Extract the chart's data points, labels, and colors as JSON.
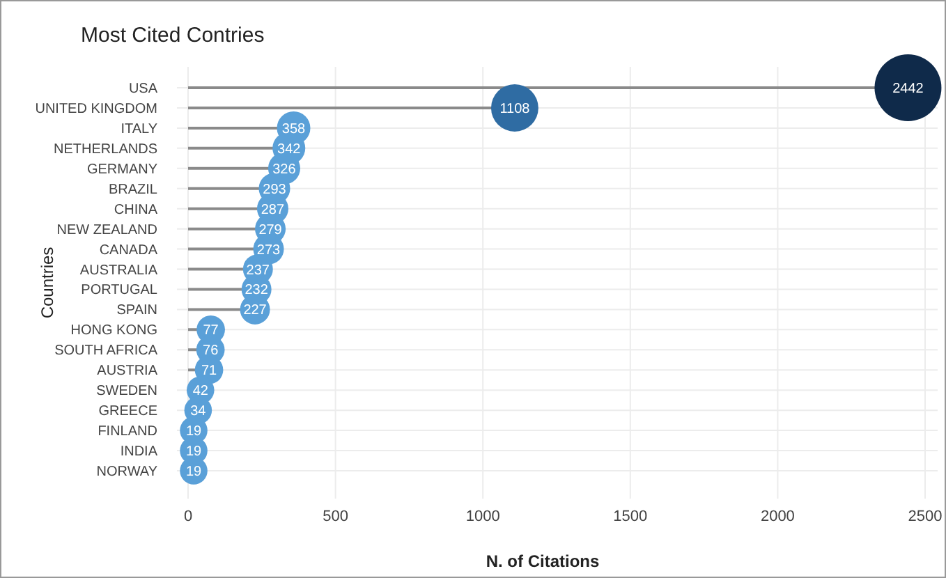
{
  "chart_data": {
    "type": "lollipop",
    "orientation": "horizontal",
    "title": "Most Cited Contries",
    "xlabel": "N. of Citations",
    "ylabel": "Countries",
    "categories": [
      "USA",
      "UNITED KINGDOM",
      "ITALY",
      "NETHERLANDS",
      "GERMANY",
      "BRAZIL",
      "CHINA",
      "NEW ZEALAND",
      "CANADA",
      "AUSTRALIA",
      "PORTUGAL",
      "SPAIN",
      "HONG KONG",
      "SOUTH AFRICA",
      "AUSTRIA",
      "SWEDEN",
      "GREECE",
      "FINLAND",
      "INDIA",
      "NORWAY"
    ],
    "values": [
      2442,
      1108,
      358,
      342,
      326,
      293,
      287,
      279,
      273,
      237,
      232,
      227,
      77,
      76,
      71,
      42,
      34,
      19,
      19,
      19
    ],
    "colors": [
      "#0f2a4a",
      "#2f6ca3",
      "#5aa0d8",
      "#5aa0d8",
      "#5aa0d8",
      "#5aa0d8",
      "#5aa0d8",
      "#5aa0d8",
      "#5aa0d8",
      "#5aa0d8",
      "#5aa0d8",
      "#5aa0d8",
      "#5aa0d8",
      "#5aa0d8",
      "#5aa0d8",
      "#5aa0d8",
      "#5aa0d8",
      "#5aa0d8",
      "#5aa0d8",
      "#5aa0d8"
    ],
    "sizes": [
      1,
      0.5,
      0.25,
      0.24,
      0.23,
      0.22,
      0.22,
      0.21,
      0.21,
      0.2,
      0.2,
      0.2,
      0.18,
      0.18,
      0.18,
      0.17,
      0.17,
      0.17,
      0.17,
      0.17
    ],
    "xlim": [
      0,
      2500
    ],
    "xticks": [
      0,
      500,
      1000,
      1500,
      2000,
      2500
    ],
    "grid": true,
    "data_labels": true
  }
}
